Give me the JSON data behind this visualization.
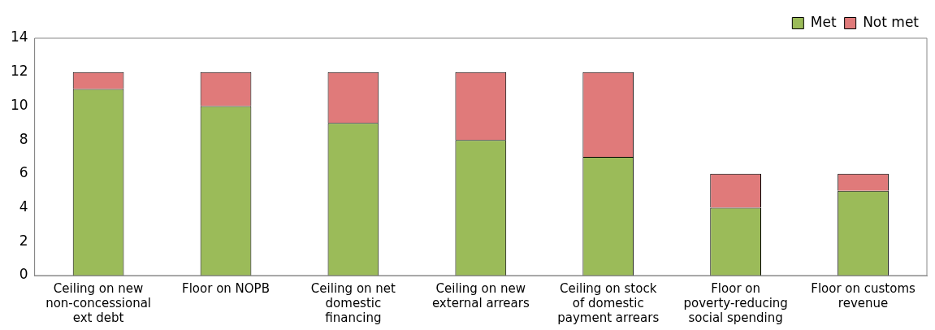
{
  "chart_data": {
    "type": "bar",
    "stacked": true,
    "categories": [
      "Ceiling on new non-concessional ext debt",
      "Floor on NOPB",
      "Ceiling on net domestic financing",
      "Ceiling on new external arrears",
      "Ceiling on stock of domestic payment arrears",
      "Floor on poverty-reducing social spending",
      "Floor on customs revenue"
    ],
    "series": [
      {
        "name": "Met",
        "color": "#9bbb59",
        "values": [
          11,
          10,
          9,
          8,
          7,
          4,
          5
        ]
      },
      {
        "name": "Not met",
        "color": "#e07a7a",
        "values": [
          1,
          2,
          3,
          4,
          5,
          2,
          1
        ]
      }
    ],
    "ylim": [
      0,
      14
    ],
    "yticks": [
      0,
      2,
      4,
      6,
      8,
      10,
      12,
      14
    ],
    "grid": false,
    "legend": "top right"
  }
}
